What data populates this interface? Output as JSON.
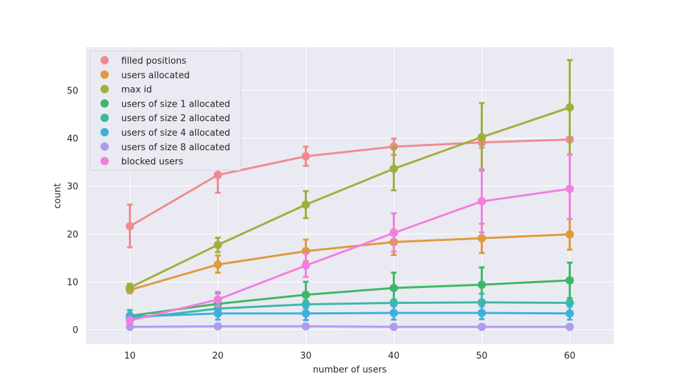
{
  "chart_data": {
    "type": "line",
    "title": "",
    "xlabel": "number of users",
    "ylabel": "count",
    "x": [
      10,
      20,
      30,
      40,
      50,
      60
    ],
    "xlim": [
      5,
      65
    ],
    "ylim": [
      -3,
      59
    ],
    "xticks": [
      10,
      20,
      30,
      40,
      50,
      60
    ],
    "yticks": [
      0,
      10,
      20,
      30,
      40,
      50
    ],
    "grid": true,
    "legend_position": "upper-left",
    "series": [
      {
        "name": "filled positions",
        "color": "#f08a8f",
        "values": [
          21.6,
          32.3,
          36.2,
          38.2,
          39.1,
          39.7
        ],
        "err_low": [
          17.2,
          28.6,
          34.2,
          36.5,
          38.0,
          39.3
        ],
        "err_high": [
          26.1,
          35.9,
          38.2,
          39.9,
          40.1,
          40.1
        ]
      },
      {
        "name": "users allocated",
        "color": "#df9a3b",
        "values": [
          8.3,
          13.6,
          16.4,
          18.3,
          19.1,
          19.9
        ],
        "err_low": [
          7.6,
          11.9,
          14.3,
          15.6,
          16.0,
          16.7
        ],
        "err_high": [
          9.0,
          15.5,
          18.8,
          20.9,
          22.1,
          23.1
        ]
      },
      {
        "name": "max id",
        "color": "#a0ae3c",
        "values": [
          8.8,
          17.7,
          26.1,
          33.6,
          40.2,
          46.4
        ],
        "err_low": [
          8.0,
          16.2,
          23.3,
          29.1,
          33.2,
          36.6
        ],
        "err_high": [
          9.6,
          19.2,
          28.9,
          38.1,
          47.3,
          56.3
        ]
      },
      {
        "name": "users of size 1 allocated",
        "color": "#3db767",
        "values": [
          2.9,
          5.4,
          7.3,
          8.7,
          9.4,
          10.3
        ],
        "err_low": [
          2.1,
          3.0,
          4.7,
          5.5,
          5.9,
          6.6
        ],
        "err_high": [
          4.1,
          7.6,
          10.0,
          11.9,
          13.0,
          14.0
        ]
      },
      {
        "name": "users of size 2 allocated",
        "color": "#3bb8a8",
        "values": [
          2.3,
          4.4,
          5.3,
          5.6,
          5.7,
          5.6
        ],
        "err_low": [
          1.6,
          3.3,
          4.5,
          4.9,
          5.0,
          5.0
        ],
        "err_high": [
          3.0,
          5.4,
          6.1,
          6.3,
          7.5,
          6.2
        ]
      },
      {
        "name": "users of size 4 allocated",
        "color": "#3cb1dc",
        "values": [
          2.7,
          3.4,
          3.4,
          3.5,
          3.5,
          3.4
        ],
        "err_low": [
          1.6,
          2.1,
          2.0,
          2.1,
          2.2,
          2.1
        ],
        "err_high": [
          4.0,
          4.8,
          4.8,
          4.9,
          4.9,
          4.8
        ]
      },
      {
        "name": "users of size 8 allocated",
        "color": "#b09af0",
        "values": [
          0.6,
          0.7,
          0.7,
          0.6,
          0.6,
          0.6
        ],
        "err_low": [
          0.4,
          0.4,
          0.3,
          0.3,
          0.3,
          0.3
        ],
        "err_high": [
          0.8,
          0.9,
          0.9,
          0.9,
          0.9,
          0.9
        ]
      },
      {
        "name": "blocked users",
        "color": "#f27ee0",
        "values": [
          1.9,
          6.3,
          13.4,
          20.2,
          26.8,
          29.4
        ],
        "err_low": [
          1.3,
          4.9,
          11.0,
          16.3,
          20.3,
          23.1
        ],
        "err_high": [
          2.6,
          7.9,
          15.9,
          24.3,
          33.5,
          36.5
        ]
      }
    ]
  }
}
